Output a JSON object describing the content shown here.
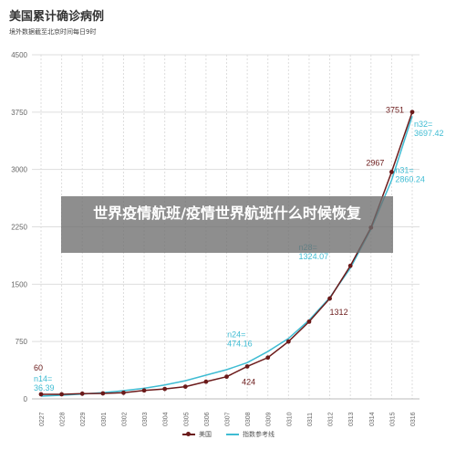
{
  "header": {
    "title": "美国累计确诊病例",
    "subtitle": "境外数据截至北京时间每日9时"
  },
  "overlay": {
    "text": "世界疫情航班/疫情世界航班什么时候恢复"
  },
  "legend": {
    "us_label": "美国",
    "ref_label": "指数参考线"
  },
  "colors": {
    "us": "#6b1a1a",
    "ref": "#3fbcd3",
    "grid": "#dddddd",
    "axis_text": "#666666"
  },
  "chart_data": {
    "type": "line",
    "categories": [
      "0227",
      "0228",
      "0229",
      "0301",
      "0302",
      "0303",
      "0304",
      "0305",
      "0306",
      "0307",
      "0308",
      "0309",
      "0310",
      "0311",
      "0312",
      "0313",
      "0314",
      "0315",
      "0316"
    ],
    "yticks": [
      0,
      750,
      1500,
      2250,
      3000,
      3750,
      4500
    ],
    "ylim": [
      0,
      4500
    ],
    "grid": true,
    "legend_position": "bottom",
    "series": [
      {
        "name": "美国",
        "values": [
          60,
          60,
          68,
          72,
          80,
          110,
          130,
          160,
          225,
          290,
          424,
          540,
          750,
          1010,
          1312,
          1740,
          2240,
          2967,
          3751
        ]
      },
      {
        "name": "指数参考线",
        "values": [
          36.39,
          48,
          63,
          82,
          107,
          139,
          182,
          237,
          310,
          382,
          474.16,
          620,
          790,
          1030,
          1324.07,
          1710,
          2220,
          2860.24,
          3697.42
        ]
      }
    ],
    "annotations": [
      {
        "series": 0,
        "index": 0,
        "text": "60"
      },
      {
        "series": 1,
        "index": 0,
        "text": "n14=\n36.39"
      },
      {
        "series": 1,
        "index": 10,
        "text": "n24=\n474.16"
      },
      {
        "series": 0,
        "index": 10,
        "text": "424"
      },
      {
        "series": 1,
        "index": 14,
        "text": "n28=\n1324.07"
      },
      {
        "series": 0,
        "index": 14,
        "text": "1312"
      },
      {
        "series": 0,
        "index": 17,
        "text": "2967"
      },
      {
        "series": 1,
        "index": 17,
        "text": "n31=\n2860.24"
      },
      {
        "series": 0,
        "index": 18,
        "text": "3751"
      },
      {
        "series": 1,
        "index": 18,
        "text": "n32=\n3697.42"
      }
    ]
  }
}
